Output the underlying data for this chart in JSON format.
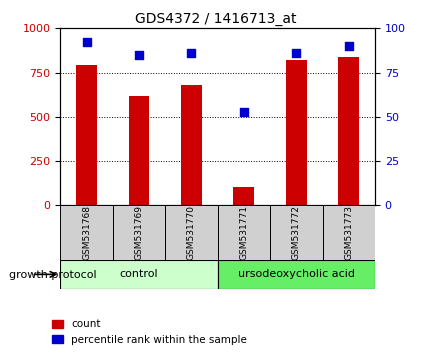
{
  "title": "GDS4372 / 1416713_at",
  "samples": [
    "GSM531768",
    "GSM531769",
    "GSM531770",
    "GSM531771",
    "GSM531772",
    "GSM531773"
  ],
  "counts": [
    790,
    620,
    680,
    105,
    820,
    840
  ],
  "percentiles": [
    92,
    85,
    86,
    53,
    86,
    90
  ],
  "ylim_left": [
    0,
    1000
  ],
  "ylim_right": [
    0,
    100
  ],
  "yticks_left": [
    0,
    250,
    500,
    750,
    1000
  ],
  "yticks_right": [
    0,
    25,
    50,
    75,
    100
  ],
  "bar_color": "#cc0000",
  "dot_color": "#0000cc",
  "bar_width": 0.4,
  "groups": [
    {
      "label": "control",
      "color": "#ccffcc"
    },
    {
      "label": "ursodeoxycholic acid",
      "color": "#66ee66"
    }
  ],
  "group_label": "growth protocol",
  "legend_count_label": "count",
  "legend_pct_label": "percentile rank within the sample",
  "grid_color": "#000000",
  "grid_style": "dotted",
  "plot_bg": "#ffffff",
  "left_axis_color": "#cc0000",
  "right_axis_color": "#0000cc",
  "label_box_color": "#d0d0d0"
}
